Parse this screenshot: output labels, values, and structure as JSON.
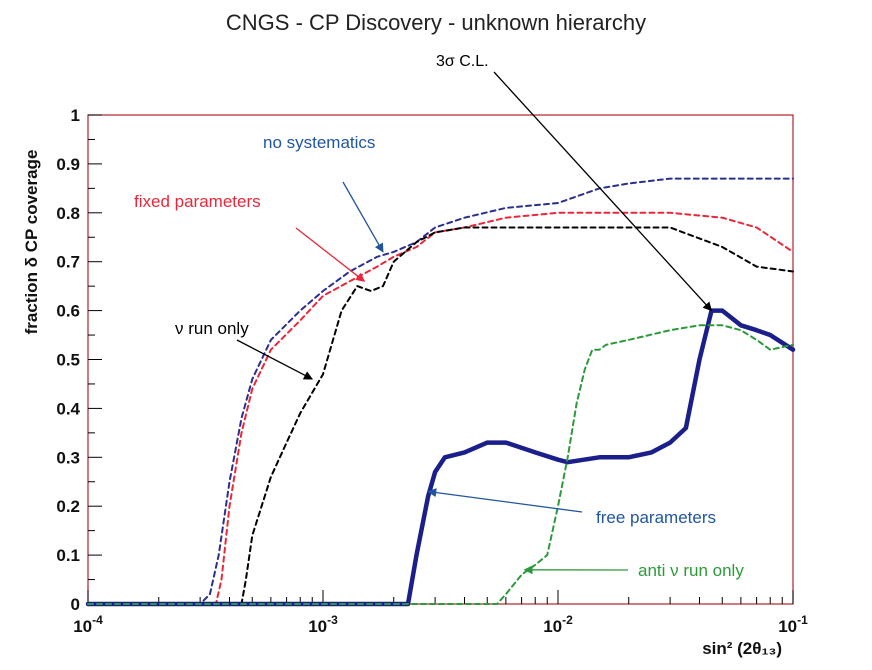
{
  "chart_data": {
    "type": "line",
    "title": "CNGS - CP Discovery - unknown hierarchy",
    "xlabel": "sin² (2θ₁₃)",
    "ylabel": "fraction δ CP coverage",
    "xscale": "log",
    "xlim": [
      0.0001,
      0.1
    ],
    "ylim": [
      0,
      1
    ],
    "x_ticks": [
      {
        "value": 0.0001,
        "base": "10",
        "exp": "-4"
      },
      {
        "value": 0.001,
        "base": "10",
        "exp": "-3"
      },
      {
        "value": 0.01,
        "base": "10",
        "exp": "-2"
      },
      {
        "value": 0.1,
        "base": "10",
        "exp": "-1"
      }
    ],
    "y_ticks": [
      0,
      0.1,
      0.2,
      0.3,
      0.4,
      0.5,
      0.6,
      0.7,
      0.8,
      0.9,
      1
    ],
    "y_tick_labels": [
      "0",
      "0.1",
      "0.2",
      "0.3",
      "0.4",
      "0.5",
      "0.6",
      "0.7",
      "0.8",
      "0.9",
      "1"
    ],
    "series": [
      {
        "name": "no systematics",
        "color": "#2b2f8f",
        "style": "dashed",
        "x": [
          0.0001,
          0.0003,
          0.00033,
          0.00036,
          0.0004,
          0.00045,
          0.0005,
          0.0006,
          0.0008,
          0.001,
          0.0013,
          0.0017,
          0.002,
          0.0025,
          0.003,
          0.004,
          0.006,
          0.01,
          0.015,
          0.02,
          0.03,
          0.05,
          0.1
        ],
        "y": [
          0,
          0,
          0.02,
          0.1,
          0.25,
          0.38,
          0.46,
          0.54,
          0.6,
          0.64,
          0.68,
          0.71,
          0.72,
          0.74,
          0.77,
          0.79,
          0.81,
          0.82,
          0.85,
          0.86,
          0.87,
          0.87,
          0.87
        ]
      },
      {
        "name": "fixed parameters",
        "color": "#e8283a",
        "style": "dashed",
        "x": [
          0.0001,
          0.00035,
          0.00037,
          0.0004,
          0.00045,
          0.0005,
          0.0006,
          0.0008,
          0.001,
          0.0013,
          0.0017,
          0.002,
          0.0025,
          0.003,
          0.004,
          0.006,
          0.01,
          0.02,
          0.03,
          0.05,
          0.07,
          0.1
        ],
        "y": [
          0,
          0,
          0.05,
          0.2,
          0.35,
          0.44,
          0.52,
          0.58,
          0.63,
          0.66,
          0.69,
          0.71,
          0.73,
          0.76,
          0.77,
          0.79,
          0.8,
          0.8,
          0.8,
          0.79,
          0.77,
          0.72
        ]
      },
      {
        "name": "ν run only",
        "color": "#000000",
        "style": "dashed",
        "x": [
          0.0001,
          0.00045,
          0.00047,
          0.0005,
          0.0006,
          0.0007,
          0.0008,
          0.001,
          0.0012,
          0.0014,
          0.0016,
          0.0018,
          0.002,
          0.0025,
          0.003,
          0.004,
          0.006,
          0.01,
          0.02,
          0.03,
          0.05,
          0.07,
          0.1
        ],
        "y": [
          0,
          0,
          0.05,
          0.14,
          0.26,
          0.33,
          0.39,
          0.47,
          0.6,
          0.65,
          0.64,
          0.65,
          0.7,
          0.74,
          0.76,
          0.77,
          0.77,
          0.77,
          0.77,
          0.77,
          0.73,
          0.69,
          0.68
        ]
      },
      {
        "name": "free parameters",
        "color": "#1a1f8c",
        "style": "solid",
        "x": [
          0.0001,
          0.0023,
          0.0025,
          0.0028,
          0.003,
          0.0033,
          0.004,
          0.005,
          0.006,
          0.008,
          0.01,
          0.011,
          0.015,
          0.02,
          0.025,
          0.03,
          0.035,
          0.04,
          0.045,
          0.05,
          0.06,
          0.07,
          0.08,
          0.1
        ],
        "y": [
          0,
          0,
          0.1,
          0.22,
          0.27,
          0.3,
          0.31,
          0.33,
          0.33,
          0.31,
          0.295,
          0.29,
          0.3,
          0.3,
          0.31,
          0.33,
          0.36,
          0.5,
          0.6,
          0.6,
          0.57,
          0.56,
          0.55,
          0.52
        ]
      },
      {
        "name": "anti ν run only",
        "color": "#2d9a3a",
        "style": "dashed",
        "x": [
          0.0001,
          0.0055,
          0.006,
          0.007,
          0.008,
          0.009,
          0.01,
          0.011,
          0.012,
          0.013,
          0.014,
          0.015,
          0.016,
          0.02,
          0.03,
          0.04,
          0.05,
          0.06,
          0.07,
          0.08,
          0.1
        ],
        "y": [
          0,
          0,
          0.02,
          0.06,
          0.08,
          0.1,
          0.2,
          0.3,
          0.41,
          0.48,
          0.52,
          0.52,
          0.53,
          0.54,
          0.56,
          0.57,
          0.57,
          0.56,
          0.54,
          0.52,
          0.53
        ]
      }
    ],
    "annotations": [
      {
        "text": "3σ C.L.",
        "color": "#000000",
        "arrow_to": [
          0.045,
          0.6
        ]
      },
      {
        "text": "no systematics",
        "color": "#2155a0",
        "arrow_to": [
          0.0018,
          0.72
        ]
      },
      {
        "text": "fixed parameters",
        "color": "#e8283a",
        "arrow_to": [
          0.0015,
          0.66
        ]
      },
      {
        "text": "ν run only",
        "color": "#000000",
        "arrow_to": [
          0.0009,
          0.46
        ]
      },
      {
        "text": "free parameters",
        "color": "#2155a0",
        "arrow_to": [
          0.0028,
          0.23
        ]
      },
      {
        "text": "anti ν run only",
        "color": "#2d9a3a",
        "arrow_to": [
          0.0072,
          0.07
        ]
      }
    ],
    "frame_color": "#b0232a",
    "grid": false
  }
}
